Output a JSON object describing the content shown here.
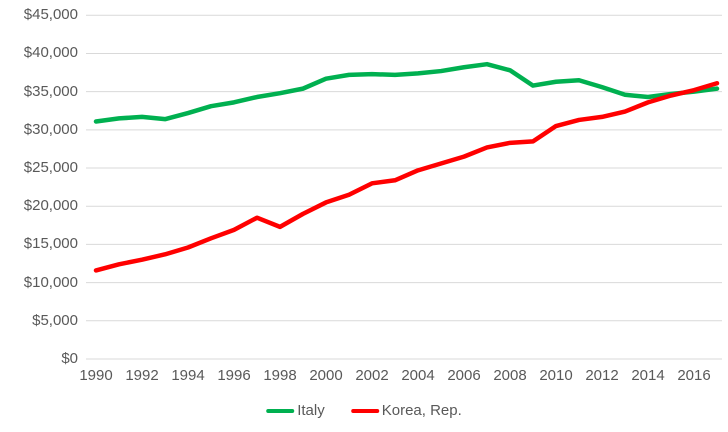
{
  "chart_data": {
    "type": "line",
    "title": "",
    "xlabel": "",
    "ylabel": "",
    "ylim": [
      0,
      45000
    ],
    "grid": true,
    "legend_position": "bottom",
    "axis_text_color": "#595959",
    "gridline_color": "#d9d9d9",
    "background_color": "#ffffff",
    "x": [
      1990,
      1991,
      1992,
      1993,
      1994,
      1995,
      1996,
      1997,
      1998,
      1999,
      2000,
      2001,
      2002,
      2003,
      2004,
      2005,
      2006,
      2007,
      2008,
      2009,
      2010,
      2011,
      2012,
      2013,
      2014,
      2015,
      2016,
      2017
    ],
    "series": [
      {
        "name": "Italy",
        "color": "#00b050",
        "values": [
          31100,
          31500,
          31700,
          31400,
          32200,
          33100,
          33600,
          34300,
          34800,
          35400,
          36700,
          37200,
          37300,
          37200,
          37400,
          37700,
          38200,
          38600,
          37800,
          35800,
          36300,
          36500,
          35600,
          34600,
          34300,
          34700,
          35000,
          35400
        ]
      },
      {
        "name": "Korea, Rep.",
        "color": "#ff0000",
        "values": [
          11600,
          12400,
          13000,
          13700,
          14600,
          15800,
          16900,
          18500,
          17300,
          19000,
          20500,
          21500,
          23000,
          23400,
          24700,
          25600,
          26500,
          27700,
          28300,
          28500,
          30500,
          31300,
          31700,
          32400,
          33600,
          34500,
          35200,
          36100
        ]
      }
    ],
    "y_tick_values": [
      0,
      5000,
      10000,
      15000,
      20000,
      25000,
      30000,
      35000,
      40000,
      45000
    ],
    "y_tick_labels": [
      "$0",
      "$5,000",
      "$10,000",
      "$15,000",
      "$20,000",
      "$25,000",
      "$30,000",
      "$35,000",
      "$40,000",
      "$45,000"
    ],
    "x_tick_years": [
      1990,
      1992,
      1994,
      1996,
      1998,
      2000,
      2002,
      2004,
      2006,
      2008,
      2010,
      2012,
      2014,
      2016
    ],
    "x_tick_labels": [
      "1990",
      "1992",
      "1994",
      "1996",
      "1998",
      "2000",
      "2002",
      "2004",
      "2006",
      "2008",
      "2010",
      "2012",
      "2014",
      "2016"
    ]
  },
  "legend": {
    "items": [
      {
        "label": "Italy"
      },
      {
        "label": "Korea, Rep."
      }
    ]
  }
}
